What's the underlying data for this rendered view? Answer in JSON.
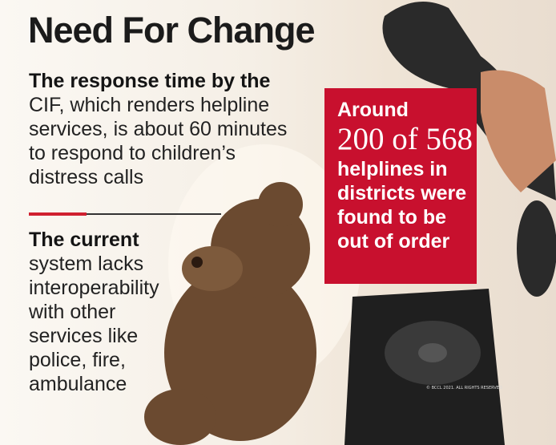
{
  "header": {
    "title": "Need For Change"
  },
  "points": [
    {
      "lead": "The response time by the",
      "lines": [
        "CIF, which renders helpline",
        "services, is about 60 minutes",
        "to respond to children’s",
        "distress calls"
      ]
    },
    {
      "lead": "The current",
      "lines": [
        "system lacks",
        "interoperability",
        "with other",
        "services like",
        "police, fire,",
        "ambulance"
      ]
    }
  ],
  "callout": {
    "top": "Around",
    "figure": "200 of 568",
    "lines": [
      "helplines in",
      "districts were",
      "found to be",
      "out of order"
    ]
  },
  "credit": "© BCCL 2021. ALL RIGHTS RESERVED"
}
